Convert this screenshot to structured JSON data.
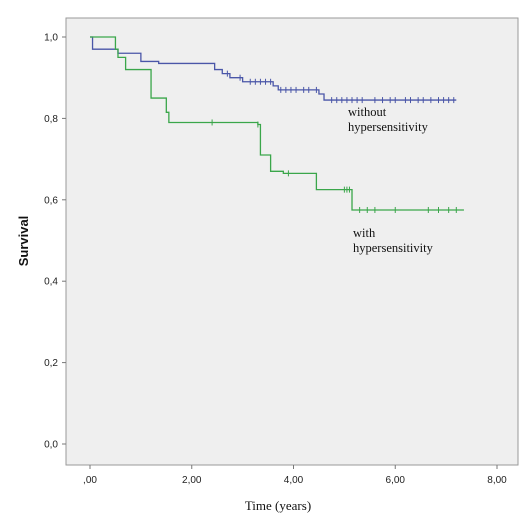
{
  "chart_data": {
    "type": "line",
    "subtype": "kaplan-meier survival curves",
    "xlabel": "Time (years)",
    "ylabel": "Survival",
    "xlim": [
      0,
      8
    ],
    "ylim": [
      0,
      1
    ],
    "x_ticks": [
      0,
      2,
      4,
      6,
      8
    ],
    "x_tick_labels": [
      ",00",
      "2,00",
      "4,00",
      "6,00",
      "8,00"
    ],
    "y_ticks": [
      0,
      0.2,
      0.4,
      0.6,
      0.8,
      1.0
    ],
    "y_tick_labels": [
      "0,0",
      "0,2",
      "0,4",
      "0,6",
      "0,8",
      "1,0"
    ],
    "grid": false,
    "plot_background": "#efefef",
    "series": [
      {
        "color": "#4a56a8",
        "steps": [
          [
            0,
            1.0
          ],
          [
            0.05,
            0.97
          ],
          [
            0.55,
            0.96
          ],
          [
            1.0,
            0.94
          ],
          [
            1.35,
            0.935
          ],
          [
            2.45,
            0.92
          ],
          [
            2.6,
            0.91
          ],
          [
            2.75,
            0.9
          ],
          [
            3.0,
            0.89
          ],
          [
            3.6,
            0.88
          ],
          [
            3.7,
            0.87
          ],
          [
            4.5,
            0.86
          ],
          [
            4.6,
            0.845
          ],
          [
            7.2,
            0.845
          ]
        ],
        "censored": [
          2.7,
          2.95,
          3.15,
          3.25,
          3.35,
          3.45,
          3.55,
          3.75,
          3.85,
          3.95,
          4.05,
          4.2,
          4.3,
          4.45,
          4.75,
          4.85,
          4.95,
          5.05,
          5.15,
          5.25,
          5.35,
          5.6,
          5.75,
          5.9,
          6.0,
          6.2,
          6.3,
          6.45,
          6.55,
          6.7,
          6.85,
          6.95,
          7.05,
          7.15
        ],
        "annotation": [
          "without",
          "hypersensitivity"
        ]
      },
      {
        "color": "#3aa64a",
        "steps": [
          [
            0,
            1.0
          ],
          [
            0.5,
            0.97
          ],
          [
            0.55,
            0.95
          ],
          [
            0.7,
            0.92
          ],
          [
            1.2,
            0.85
          ],
          [
            1.5,
            0.815
          ],
          [
            1.55,
            0.79
          ],
          [
            3.3,
            0.785
          ],
          [
            3.35,
            0.71
          ],
          [
            3.55,
            0.67
          ],
          [
            3.8,
            0.665
          ],
          [
            4.45,
            0.625
          ],
          [
            5.15,
            0.575
          ],
          [
            7.35,
            0.575
          ]
        ],
        "censored": [
          2.4,
          3.3,
          3.9,
          5.0,
          5.05,
          5.1,
          5.3,
          5.45,
          5.6,
          6.0,
          6.65,
          6.85,
          7.05,
          7.2
        ],
        "annotation": [
          "with",
          "hypersensitivity"
        ]
      }
    ]
  }
}
